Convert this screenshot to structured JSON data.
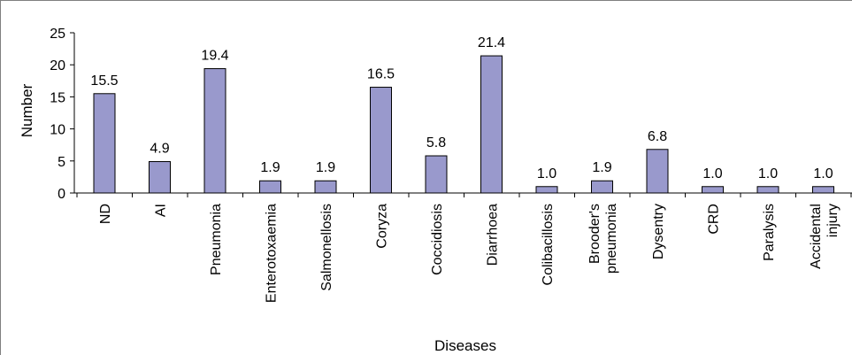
{
  "chart_data": {
    "type": "bar",
    "title": "",
    "xlabel": "Diseases",
    "ylabel": "Number",
    "ylim": [
      0,
      25
    ],
    "yticks": [
      0,
      5,
      10,
      15,
      20,
      25
    ],
    "grid": false,
    "legend": "none",
    "bar_color": "#9999cc",
    "bar_edge_color": "#000000",
    "categories": [
      [
        "ND"
      ],
      [
        "AI"
      ],
      [
        "Pneumonia"
      ],
      [
        "Enterotoxaemia"
      ],
      [
        "Salmonellosis"
      ],
      [
        "Coryza"
      ],
      [
        "Coccidiosis"
      ],
      [
        "Diarrhoea"
      ],
      [
        "Colibacillosis"
      ],
      [
        "Brooder's",
        "pneumonia"
      ],
      [
        "Dysentry"
      ],
      [
        "CRD"
      ],
      [
        "Paralysis"
      ],
      [
        "Accidental",
        "injury"
      ]
    ],
    "values": [
      15.5,
      4.9,
      19.4,
      1.9,
      1.9,
      16.5,
      5.8,
      21.4,
      1.0,
      1.9,
      6.8,
      1.0,
      1.0,
      1.0
    ],
    "value_labels": [
      "15.5",
      "4.9",
      "19.4",
      "1.9",
      "1.9",
      "16.5",
      "5.8",
      "21.4",
      "1.0",
      "1.9",
      "6.8",
      "1.0",
      "1.0",
      "1.0"
    ]
  }
}
